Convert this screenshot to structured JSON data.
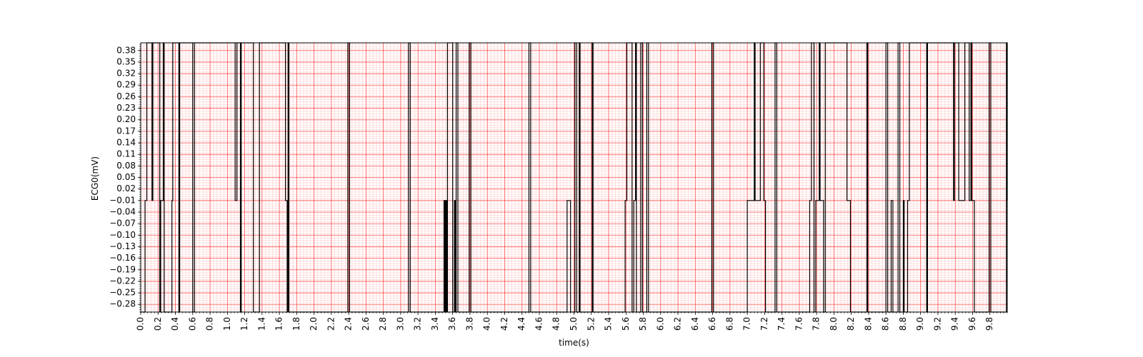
{
  "chart_data": {
    "type": "line",
    "title": "",
    "xlabel": "time(s)",
    "ylabel": "ECG0(mV)",
    "xlim": [
      0.0,
      10.0
    ],
    "ylim": [
      -0.3,
      0.4
    ],
    "x_ticks": [
      "0.0",
      "0.2",
      "0.4",
      "0.6",
      "0.8",
      "1.0",
      "1.2",
      "1.4",
      "1.6",
      "1.8",
      "2.0",
      "2.2",
      "2.4",
      "2.6",
      "2.8",
      "3.0",
      "3.2",
      "3.4",
      "3.6",
      "3.8",
      "4.0",
      "4.2",
      "4.4",
      "4.6",
      "4.8",
      "5.0",
      "5.2",
      "5.4",
      "5.6",
      "5.8",
      "6.0",
      "6.2",
      "6.4",
      "6.6",
      "6.8",
      "7.0",
      "7.2",
      "7.4",
      "7.6",
      "7.8",
      "8.0",
      "8.2",
      "8.4",
      "8.6",
      "8.8",
      "9.0",
      "9.2",
      "9.4",
      "9.6",
      "9.8"
    ],
    "y_ticks": [
      "−0.28",
      "−0.25",
      "−0.22",
      "−0.19",
      "−0.16",
      "−0.13",
      "−0.10",
      "−0.07",
      "−0.04",
      "−0.01",
      "0.02",
      "0.05",
      "0.08",
      "0.11",
      "0.14",
      "0.17",
      "0.20",
      "0.23",
      "0.26",
      "0.29",
      "0.32",
      "0.35",
      "0.38"
    ],
    "grid": {
      "major": true,
      "minor": true,
      "color": "#ff0000"
    },
    "series": [
      {
        "color": "#000000",
        "step": true,
        "x": [
          0.0,
          0.05,
          0.07,
          0.13,
          0.14,
          0.22,
          0.23,
          0.26,
          0.27,
          0.36,
          0.37,
          0.44,
          0.45,
          0.6,
          0.62,
          1.09,
          1.11,
          1.15,
          1.16,
          1.3,
          1.37,
          1.67,
          1.69,
          1.7,
          1.71,
          2.39,
          2.41,
          3.09,
          3.11,
          3.5,
          3.51,
          3.52,
          3.53,
          3.54,
          3.6,
          3.62,
          3.63,
          3.64,
          3.66,
          3.79,
          3.81,
          4.48,
          4.5,
          4.92,
          4.96,
          5.01,
          5.03,
          5.06,
          5.07,
          5.21,
          5.22,
          5.59,
          5.61,
          5.67,
          5.69,
          5.71,
          5.72,
          5.77,
          5.79,
          5.84,
          5.86,
          6.59,
          6.61,
          7.0,
          7.08,
          7.09,
          7.15,
          7.19,
          7.21,
          7.32,
          7.34,
          7.72,
          7.74,
          7.77,
          7.79,
          7.83,
          7.84,
          7.88,
          7.9,
          8.15,
          8.19,
          8.38,
          8.39,
          8.6,
          8.62,
          8.66,
          8.68,
          8.74,
          8.76,
          8.8,
          8.81,
          8.85,
          8.87,
          9.07,
          9.08,
          9.38,
          9.39,
          9.44,
          9.51,
          9.56,
          9.58,
          9.59,
          9.62,
          9.79,
          9.81,
          9.99,
          10.0
        ],
        "y": [
          -0.3,
          -0.01,
          0.4,
          -0.01,
          0.4,
          -0.3,
          -0.01,
          0.4,
          -0.3,
          -0.01,
          0.4,
          -0.3,
          0.4,
          -0.3,
          0.4,
          -0.01,
          0.4,
          -0.3,
          0.4,
          -0.3,
          0.4,
          -0.01,
          -0.3,
          0.4,
          -0.3,
          0.4,
          -0.3,
          0.4,
          -0.3,
          -0.01,
          -0.3,
          -0.01,
          -0.3,
          0.4,
          -0.3,
          -0.01,
          -0.3,
          0.4,
          -0.3,
          0.4,
          -0.3,
          0.4,
          -0.3,
          -0.01,
          -0.3,
          0.4,
          -0.3,
          0.4,
          -0.3,
          0.4,
          -0.3,
          -0.01,
          0.4,
          -0.3,
          -0.01,
          0.4,
          -0.3,
          0.4,
          -0.3,
          0.4,
          -0.3,
          0.4,
          -0.3,
          -0.01,
          0.4,
          -0.01,
          0.4,
          -0.01,
          -0.3,
          0.4,
          -0.3,
          -0.01,
          0.4,
          -0.3,
          -0.01,
          0.4,
          -0.01,
          -0.3,
          0.4,
          -0.01,
          -0.3,
          0.4,
          -0.3,
          0.4,
          -0.3,
          -0.01,
          -0.3,
          0.4,
          -0.3,
          -0.01,
          -0.3,
          -0.01,
          0.4,
          -0.3,
          0.4,
          -0.01,
          0.4,
          -0.01,
          0.4,
          -0.01,
          0.4,
          -0.01,
          -0.3,
          0.4,
          -0.3,
          0.4,
          -0.01
        ]
      }
    ]
  }
}
